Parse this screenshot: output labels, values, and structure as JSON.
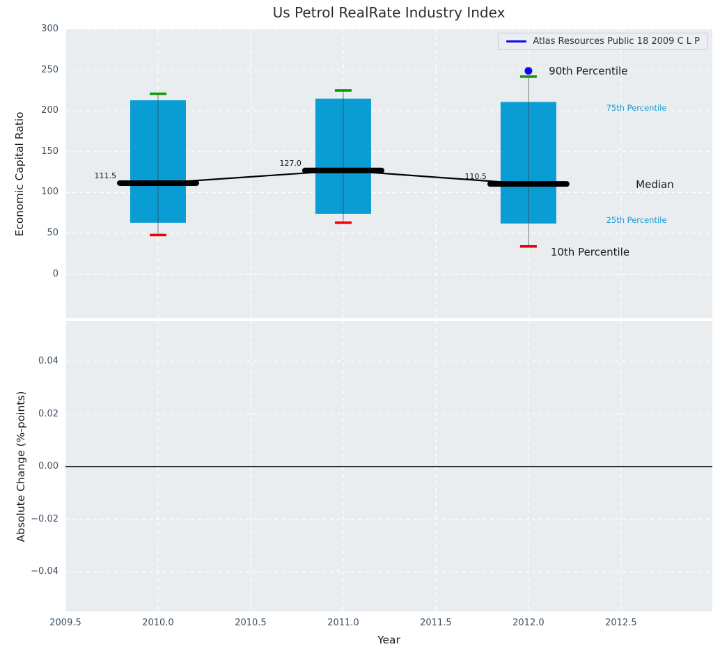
{
  "chart_data": {
    "type": "boxplot",
    "title": "Us Petrol RealRate Industry Index",
    "xlabel": "Year",
    "xlim": [
      2009.5,
      2012.993
    ],
    "x_ticks": [
      {
        "v": 2009.5,
        "label": "2009.5"
      },
      {
        "v": 2010.0,
        "label": "2010.0"
      },
      {
        "v": 2010.5,
        "label": "2010.5"
      },
      {
        "v": 2011.0,
        "label": "2011.0"
      },
      {
        "v": 2011.5,
        "label": "2011.5"
      },
      {
        "v": 2012.0,
        "label": "2012.0"
      },
      {
        "v": 2012.5,
        "label": "2012.5"
      }
    ],
    "legend": {
      "label": "Atlas Resources Public 18 2009 C L P"
    },
    "top": {
      "ylabel": "Economic Capital Ratio",
      "ylim": [
        -54,
        300
      ],
      "y_ticks": [
        {
          "v": 0,
          "label": "0"
        },
        {
          "v": 50,
          "label": "50"
        },
        {
          "v": 100,
          "label": "100"
        },
        {
          "v": 150,
          "label": "150"
        },
        {
          "v": 200,
          "label": "200"
        },
        {
          "v": 250,
          "label": "250"
        },
        {
          "v": 300,
          "label": "300"
        }
      ],
      "years": [
        2010,
        2011,
        2012
      ],
      "median": [
        111.5,
        127.0,
        110.5
      ],
      "median_labels": [
        "111.5",
        "127.0",
        "110.5"
      ],
      "p75": [
        213,
        215,
        211
      ],
      "p25": [
        63,
        74,
        62
      ],
      "p90_whisker": [
        221,
        225,
        242
      ],
      "p10_whisker": [
        48,
        63,
        34
      ],
      "company_dot": {
        "year": 2012,
        "value": 249
      },
      "annotations": [
        {
          "text": "90th Percentile",
          "year": 2012.11,
          "value": 249,
          "size": 15,
          "color": "#1a1a1a"
        },
        {
          "text": "75th Percentile",
          "year": 2012.42,
          "value": 204,
          "size": 11.5,
          "color": "#169bd4"
        },
        {
          "text": "Median",
          "year": 2012.58,
          "value": 110,
          "size": 15,
          "color": "#1a1a1a"
        },
        {
          "text": "25th Percentile",
          "year": 2012.42,
          "value": 66,
          "size": 11.5,
          "color": "#169bd4"
        },
        {
          "text": "10th Percentile",
          "year": 2012.12,
          "value": 27,
          "size": 15,
          "color": "#1a1a1a"
        }
      ]
    },
    "bottom": {
      "ylabel": "Absolute Change (%-points)",
      "ylim": [
        -0.0551,
        0.0554
      ],
      "y_ticks": [
        {
          "v": -0.04,
          "label": "−0.04"
        },
        {
          "v": -0.02,
          "label": "−0.02"
        },
        {
          "v": 0.0,
          "label": "0.00"
        },
        {
          "v": 0.02,
          "label": "0.02"
        },
        {
          "v": 0.04,
          "label": "0.04"
        }
      ],
      "zero_line": 0.0
    },
    "colors": {
      "box": "#0a9dd4",
      "median_line": "#000000",
      "p90_cap": "#0c9a0c",
      "p10_cap": "#f50000",
      "company_dot": "#0b0bf0",
      "legend_line": "#0b0bf0",
      "annotation_blue": "#169bd4",
      "plot_bg": "#e9edef",
      "grid": "#ffffff",
      "tick": "#3d4e63",
      "whisker": "#3c3c3c"
    }
  }
}
